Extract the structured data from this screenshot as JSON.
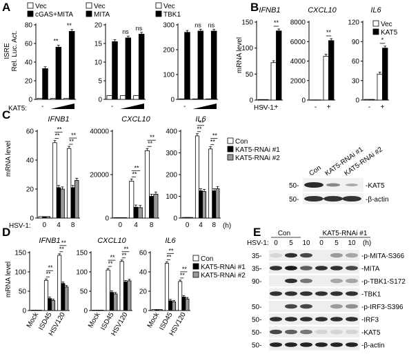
{
  "panels": {
    "A": {
      "letter": "A",
      "ylabel1": "ISRE",
      "ylabel2": "Rel. Luc. Act.",
      "kat5_label": "KAT5:",
      "dash": "-"
    },
    "B": {
      "letter": "B",
      "ylabel": "mRNA level",
      "hsv_label": "HSV-1:"
    },
    "C": {
      "letter": "C",
      "ylabel": "mRNA level",
      "hsv_label": "HSV-1:",
      "hours_unit": "(h)"
    },
    "D": {
      "letter": "D",
      "ylabel": "mRNA level"
    },
    "E": {
      "letter": "E",
      "hsv_label": "HSV-1:",
      "hours_unit": "(h)",
      "groups": [
        "Con",
        "KAT5-RNAi #1"
      ],
      "lanes": [
        "0",
        "5",
        "10",
        "0",
        "5",
        "10"
      ],
      "blots": [
        {
          "mw": "35-",
          "label": "-p-MITA-S366"
        },
        {
          "mw": "35-",
          "label": "-MITA"
        },
        {
          "mw": "90-",
          "label": "-p-TBK1-S172"
        },
        {
          "mw": "",
          "label": "-TBK1"
        },
        {
          "mw": "50-",
          "label": "-p-IRF3-S396"
        },
        {
          "mw": "50-",
          "label": "-IRF3"
        },
        {
          "mw": "50-",
          "label": "-KAT5"
        },
        {
          "mw": "50-",
          "label": "-β-actin"
        }
      ]
    },
    "C_blot": {
      "lanes": [
        "Con",
        "KAT5-RNAi #1",
        "KAT5-RNAi #2"
      ],
      "rows": [
        {
          "mw": "50-",
          "label": "-KAT5"
        },
        {
          "mw": "50-",
          "label": "-β-actin"
        }
      ]
    }
  },
  "colors": {
    "vec": "#ffffff",
    "treated": "#000000",
    "rnai2": "#999999",
    "axis": "#000000"
  },
  "chart_data": [
    {
      "id": "A1",
      "type": "bar",
      "categories": [
        "-",
        "low",
        "high"
      ],
      "cat_labels": [
        "-",
        "",
        ""
      ],
      "series": [
        {
          "name": "Vec",
          "values": [
            1,
            1,
            1
          ]
        },
        {
          "name": "cGAS+MITA",
          "values": [
            33,
            56,
            73
          ]
        }
      ],
      "yticks": [
        "0",
        "20",
        "40",
        "60",
        "80"
      ],
      "ylim": [
        0,
        80
      ],
      "sig": [
        "",
        "**",
        "**"
      ],
      "legend": [
        "Vec",
        "cGAS+MITA"
      ]
    },
    {
      "id": "A2",
      "type": "bar",
      "categories": [
        "-",
        "low",
        "high"
      ],
      "cat_labels": [
        "-",
        "",
        ""
      ],
      "series": [
        {
          "name": "Vec",
          "values": [
            1,
            1,
            1
          ]
        },
        {
          "name": "MITA",
          "values": [
            15.5,
            16.5,
            17.5
          ]
        }
      ],
      "yticks": [
        "0",
        "5",
        "10",
        "15",
        "20"
      ],
      "ylim": [
        0,
        20
      ],
      "sig": [
        "",
        "ns",
        "ns"
      ],
      "legend": [
        "Vec",
        "MITA"
      ]
    },
    {
      "id": "A3",
      "type": "bar",
      "categories": [
        "-",
        "low",
        "high"
      ],
      "cat_labels": [
        "-",
        "",
        ""
      ],
      "series": [
        {
          "name": "Vec",
          "values": [
            2,
            2,
            2
          ]
        },
        {
          "name": "TBK1",
          "values": [
            270,
            275,
            275
          ]
        }
      ],
      "yticks": [
        "0",
        "100",
        "200",
        "300"
      ],
      "ylim": [
        0,
        300
      ],
      "sig": [
        "",
        "ns",
        "ns"
      ],
      "legend": [
        "Vec",
        "TBK1"
      ]
    },
    {
      "id": "B1",
      "type": "bar",
      "title": "IFNB1",
      "categories": [
        "-",
        "+"
      ],
      "cat_labels": [
        "-",
        "+"
      ],
      "series": [
        {
          "name": "Vec",
          "values": [
            1,
            72
          ]
        },
        {
          "name": "KAT5",
          "values": [
            1,
            133
          ]
        }
      ],
      "yticks": [
        "0",
        "50",
        "100",
        "150"
      ],
      "ylim": [
        0,
        150
      ],
      "sig": [
        "",
        "**"
      ]
    },
    {
      "id": "B2",
      "type": "bar",
      "title": "CXCL10",
      "categories": [
        "-",
        "+"
      ],
      "cat_labels": [
        "-",
        "+"
      ],
      "series": [
        {
          "name": "Vec",
          "values": [
            20,
            4500
          ]
        },
        {
          "name": "KAT5",
          "values": [
            20,
            6100
          ]
        }
      ],
      "yticks": [
        "0",
        "2000",
        "4000",
        "6000",
        "8000"
      ],
      "ylim": [
        0,
        8000
      ],
      "sig": [
        "",
        "**"
      ]
    },
    {
      "id": "B3",
      "type": "bar",
      "title": "IL6",
      "categories": [
        "-",
        "+"
      ],
      "cat_labels": [
        "-",
        "+"
      ],
      "series": [
        {
          "name": "Vec",
          "values": [
            1,
            40
          ]
        },
        {
          "name": "KAT5",
          "values": [
            1,
            80
          ]
        }
      ],
      "yticks": [
        "0",
        "30",
        "60",
        "90",
        "120"
      ],
      "ylim": [
        0,
        120
      ],
      "sig": [
        "",
        "*"
      ],
      "legend": [
        "Vec",
        "KAT5"
      ]
    },
    {
      "id": "C1",
      "type": "bar",
      "title": "IFNB1",
      "categories": [
        "0",
        "4",
        "8"
      ],
      "cat_labels": [
        "0",
        "4",
        "8"
      ],
      "series": [
        {
          "name": "Con",
          "values": [
            1,
            52,
            48
          ]
        },
        {
          "name": "KAT5-RNAi #1",
          "values": [
            1,
            21,
            21
          ]
        },
        {
          "name": "KAT5-RNAi #2",
          "values": [
            1,
            20,
            26
          ]
        }
      ],
      "yticks": [
        "0",
        "20",
        "40",
        "60"
      ],
      "ylim": [
        0,
        60
      ],
      "sig": [
        "",
        "**",
        "**"
      ]
    },
    {
      "id": "C2",
      "type": "bar",
      "title": "CXCL10",
      "categories": [
        "0",
        "4",
        "8"
      ],
      "cat_labels": [
        "0",
        "4",
        "8"
      ],
      "series": [
        {
          "name": "Con",
          "values": [
            0.2,
            17,
            31
          ]
        },
        {
          "name": "KAT5-RNAi #1",
          "values": [
            0.2,
            5,
            10
          ]
        },
        {
          "name": "KAT5-RNAi #2",
          "values": [
            0.2,
            4.8,
            11
          ]
        }
      ],
      "yticks": [
        "0",
        "20000",
        "40000"
      ],
      "ylim": [
        0,
        40
      ],
      "sig": [
        "",
        "**",
        "**"
      ]
    },
    {
      "id": "C3",
      "type": "bar",
      "title": "IL6",
      "categories": [
        "0",
        "4",
        "8"
      ],
      "cat_labels": [
        "0",
        "4",
        "8"
      ],
      "series": [
        {
          "name": "Con",
          "values": [
            3,
            378,
            318
          ]
        },
        {
          "name": "KAT5-RNAi #1",
          "values": [
            3,
            125,
            125
          ]
        },
        {
          "name": "KAT5-RNAi #2",
          "values": [
            3,
            122,
            135
          ]
        }
      ],
      "yticks": [
        "0",
        "100",
        "200",
        "300",
        "400"
      ],
      "ylim": [
        0,
        400
      ],
      "sig": [
        "",
        "**",
        "**"
      ],
      "legend": [
        "Con",
        "KAT5-RNAi #1",
        "KAT5-RNAi #2"
      ]
    },
    {
      "id": "D1",
      "type": "bar",
      "title": "IFNB1",
      "categories": [
        "Mock",
        "ISD45",
        "HSV120"
      ],
      "cat_labels": [
        "Mock",
        "ISD45",
        "HSV120"
      ],
      "series": [
        {
          "name": "Con",
          "values": [
            1,
            78,
            143
          ]
        },
        {
          "name": "KAT5-RNAi #1",
          "values": [
            1,
            31,
            70
          ]
        },
        {
          "name": "KAT5-RNAi #2",
          "values": [
            1,
            26,
            61
          ]
        }
      ],
      "yticks": [
        "0",
        "50",
        "100",
        "150"
      ],
      "ylim": [
        0,
        150
      ],
      "sig": [
        "",
        "**",
        "**"
      ]
    },
    {
      "id": "D2",
      "type": "bar",
      "title": "CXCL10",
      "categories": [
        "Mock",
        "ISD45",
        "HSV120"
      ],
      "cat_labels": [
        "Mock",
        "ISD45",
        "HSV120"
      ],
      "series": [
        {
          "name": "Con",
          "values": [
            1,
            105,
            127
          ]
        },
        {
          "name": "KAT5-RNAi #1",
          "values": [
            1,
            47,
            74
          ]
        },
        {
          "name": "KAT5-RNAi #2",
          "values": [
            1,
            43,
            77
          ]
        }
      ],
      "yticks": [
        "0",
        "50",
        "100",
        "150"
      ],
      "ylim": [
        0,
        150
      ],
      "sig": [
        "",
        "**",
        "**"
      ]
    },
    {
      "id": "D3",
      "type": "bar",
      "title": "IL6",
      "categories": [
        "Mock",
        "ISD45",
        "HSV120"
      ],
      "cat_labels": [
        "Mock",
        "ISD45",
        "HSV120"
      ],
      "series": [
        {
          "name": "Con",
          "values": [
            1,
            49,
            30
          ]
        },
        {
          "name": "KAT5-RNAi #1",
          "values": [
            1,
            10,
            14
          ]
        },
        {
          "name": "KAT5-RNAi #2",
          "values": [
            1,
            9,
            12
          ]
        }
      ],
      "yticks": [
        "0",
        "20",
        "40",
        "60"
      ],
      "ylim": [
        0,
        60
      ],
      "sig": [
        "",
        "**",
        "**"
      ],
      "legend": [
        "Con",
        "KAT5-RNAi #1",
        "KAT5-RNAi #2"
      ]
    }
  ]
}
